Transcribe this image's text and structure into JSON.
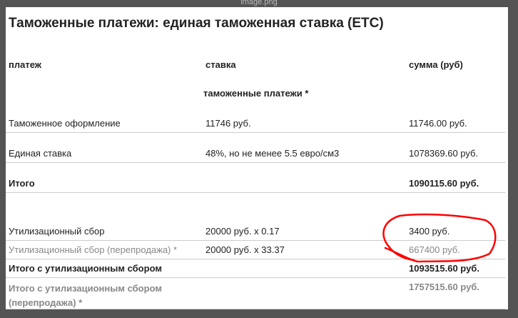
{
  "window_title": "image.png",
  "title": "Таможенные платежи: единая таможенная ставка (ЕТС)",
  "headers": [
    "платеж",
    "ставка",
    "сумма (руб)"
  ],
  "section": "таможенные платежи *",
  "rows": [
    {
      "name": "Таможенное оформление",
      "rate": "11746 руб.",
      "sum": "11746.00 руб."
    },
    {
      "name": "Единая ставка",
      "rate": "48%, но не менее 5.5 евро/см3",
      "sum": "1078369.60 руб."
    },
    {
      "name": "Итого",
      "rate": "",
      "sum": "1090115.60 руб."
    },
    {
      "name": "Утилизационный сбор",
      "rate": "20000 руб. x 0.17",
      "sum": "3400 руб."
    },
    {
      "name": "Утилизационный сбор (перепродажа) *",
      "rate": "20000 руб. x 33.37",
      "sum": "667400 руб."
    },
    {
      "name": "Итого с утилизационным сбором",
      "rate": "",
      "sum": "1093515.60 руб."
    },
    {
      "name": "Итого с утилизационным сбором (перепродажа) *",
      "rate": "",
      "sum": "1757515.60 руб."
    }
  ],
  "annotation_color": "#ff0000"
}
